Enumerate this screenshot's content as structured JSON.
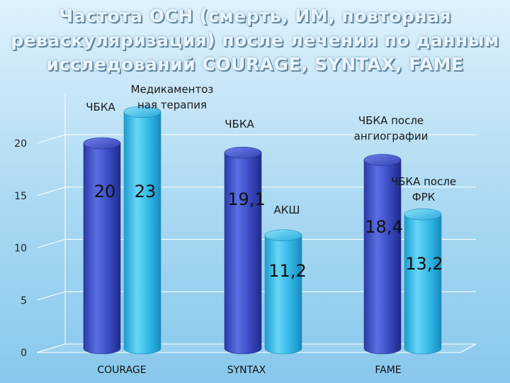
{
  "title": {
    "line1": "Частота ОСН (смерть, ИМ, повторная",
    "line2": "реваскуляризация) после лечения по данным",
    "line3": "исследований COURAGE, SYNTAX, FAME"
  },
  "colors": {
    "dark_bar": "#3b4fc4",
    "light_bar": "#33b8e6"
  },
  "chart_data": {
    "type": "bar",
    "categories": [
      "COURAGE",
      "SYNTAX",
      "FAME"
    ],
    "bars": [
      {
        "category": "COURAGE",
        "label": "ЧБКА",
        "value": 20,
        "value_label": "20",
        "color": "dark"
      },
      {
        "category": "COURAGE",
        "label": "Медикаментоз ная терапия",
        "label_lines": [
          "Медикаментоз",
          "ная терапия"
        ],
        "value": 23,
        "value_label": "23",
        "color": "light"
      },
      {
        "category": "SYNTAX",
        "label": "ЧБКА",
        "value": 19.1,
        "value_label": "19,1",
        "color": "dark"
      },
      {
        "category": "SYNTAX",
        "label": "АКШ",
        "value": 11.2,
        "value_label": "11,2",
        "color": "light"
      },
      {
        "category": "FAME",
        "label": "ЧБКА после ангиографии",
        "label_lines": [
          "ЧБКА после",
          "ангиографии"
        ],
        "value": 18.4,
        "value_label": "18,4",
        "color": "dark"
      },
      {
        "category": "FAME",
        "label": "ЧБКА после ФРК",
        "label_lines": [
          "ЧБКА после",
          "ФРК"
        ],
        "value": 13.2,
        "value_label": "13,2",
        "color": "light"
      }
    ],
    "yticks": [
      0,
      5,
      10,
      15,
      20
    ],
    "ylim": [
      0,
      24
    ],
    "grid": true,
    "xlabel": "",
    "ylabel": ""
  }
}
